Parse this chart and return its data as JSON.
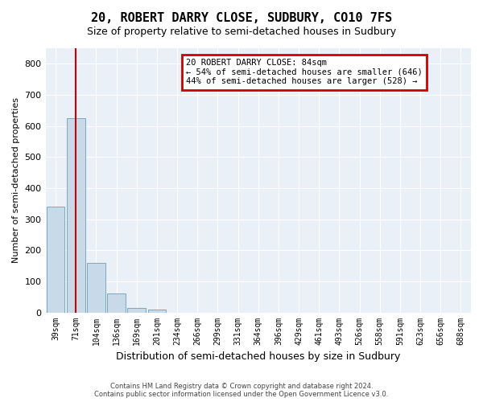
{
  "title1": "20, ROBERT DARRY CLOSE, SUDBURY, CO10 7FS",
  "title2": "Size of property relative to semi-detached houses in Sudbury",
  "xlabel": "Distribution of semi-detached houses by size in Sudbury",
  "ylabel": "Number of semi-detached properties",
  "bins": [
    "39sqm",
    "71sqm",
    "104sqm",
    "136sqm",
    "169sqm",
    "201sqm",
    "234sqm",
    "266sqm",
    "299sqm",
    "331sqm",
    "364sqm",
    "396sqm",
    "429sqm",
    "461sqm",
    "493sqm",
    "526sqm",
    "558sqm",
    "591sqm",
    "623sqm",
    "656sqm",
    "688sqm"
  ],
  "values": [
    340,
    625,
    160,
    62,
    15,
    8,
    0,
    0,
    0,
    0,
    0,
    0,
    0,
    0,
    0,
    0,
    0,
    0,
    0,
    0,
    0
  ],
  "ylim": [
    0,
    850
  ],
  "property_bin_index": 1,
  "annotation_title": "20 ROBERT DARRY CLOSE: 84sqm",
  "annotation_line1": "← 54% of semi-detached houses are smaller (646)",
  "annotation_line2": "44% of semi-detached houses are larger (528) →",
  "bar_color": "#c8d9e8",
  "bar_edge_color": "#7aa8c8",
  "vline_color": "#cc0000",
  "annotation_box_color": "#cc0000",
  "footer1": "Contains HM Land Registry data © Crown copyright and database right 2024.",
  "footer2": "Contains public sector information licensed under the Open Government Licence v3.0."
}
